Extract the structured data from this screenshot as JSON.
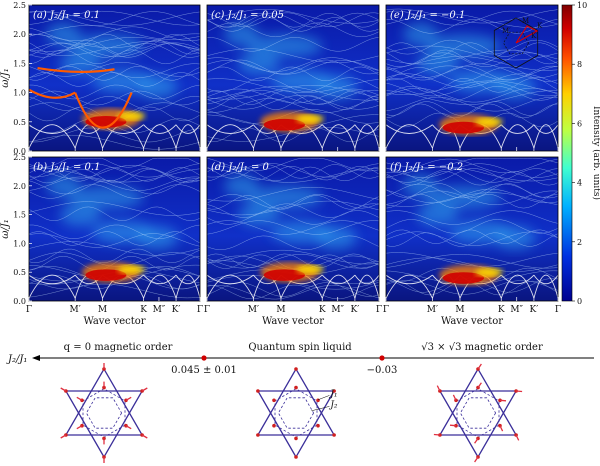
{
  "chart_data": {
    "type": "heatmap",
    "panels": [
      {
        "label": "(a) J₂/J₁ = 0.1",
        "J2_over_J1": 0.1
      },
      {
        "label": "(c) J₂/J₁ = 0.05",
        "J2_over_J1": 0.05
      },
      {
        "label": "(e) J₂/J₁ = −0.1",
        "J2_over_J1": -0.1
      },
      {
        "label": "(b) J₂/J₁ = 0.1",
        "J2_over_J1": 0.1
      },
      {
        "label": "(d) J₂/J₁ = 0",
        "J2_over_J1": 0
      },
      {
        "label": "(f) J₂/J₁ = −0.2",
        "J2_over_J1": -0.2
      }
    ],
    "ylabel": "ω/J₁",
    "xlabel": "Wave vector",
    "ylim": [
      0,
      2.5
    ],
    "yticks": [
      "0.0",
      "0.5",
      "1.0",
      "1.5",
      "2.0",
      "2.5"
    ],
    "xticks": [
      "Γ",
      "M′",
      "M",
      "K",
      "M″",
      "K′",
      "Γ"
    ],
    "colorbar": {
      "label": "Intensity (arb. units)",
      "range": [
        0,
        10
      ],
      "ticks": [
        "0",
        "2",
        "4",
        "6",
        "8",
        "10"
      ],
      "colors": [
        "#00008f",
        "#0050ff",
        "#00e0ff",
        "#80ff80",
        "#ffff00",
        "#ff8000",
        "#c00000",
        "#800000"
      ]
    },
    "inset_labels": [
      "M",
      "K",
      "M′",
      "K′"
    ]
  },
  "phase_diagram": {
    "axis_label": "J₂/J₁",
    "regions": [
      "q = 0 magnetic order",
      "Quantum spin liquid",
      "√3 × √3 magnetic order"
    ],
    "boundaries": [
      "0.045 ± 0.01",
      "−0.03"
    ],
    "lattice_labels": [
      "J₁",
      "J₂"
    ]
  }
}
